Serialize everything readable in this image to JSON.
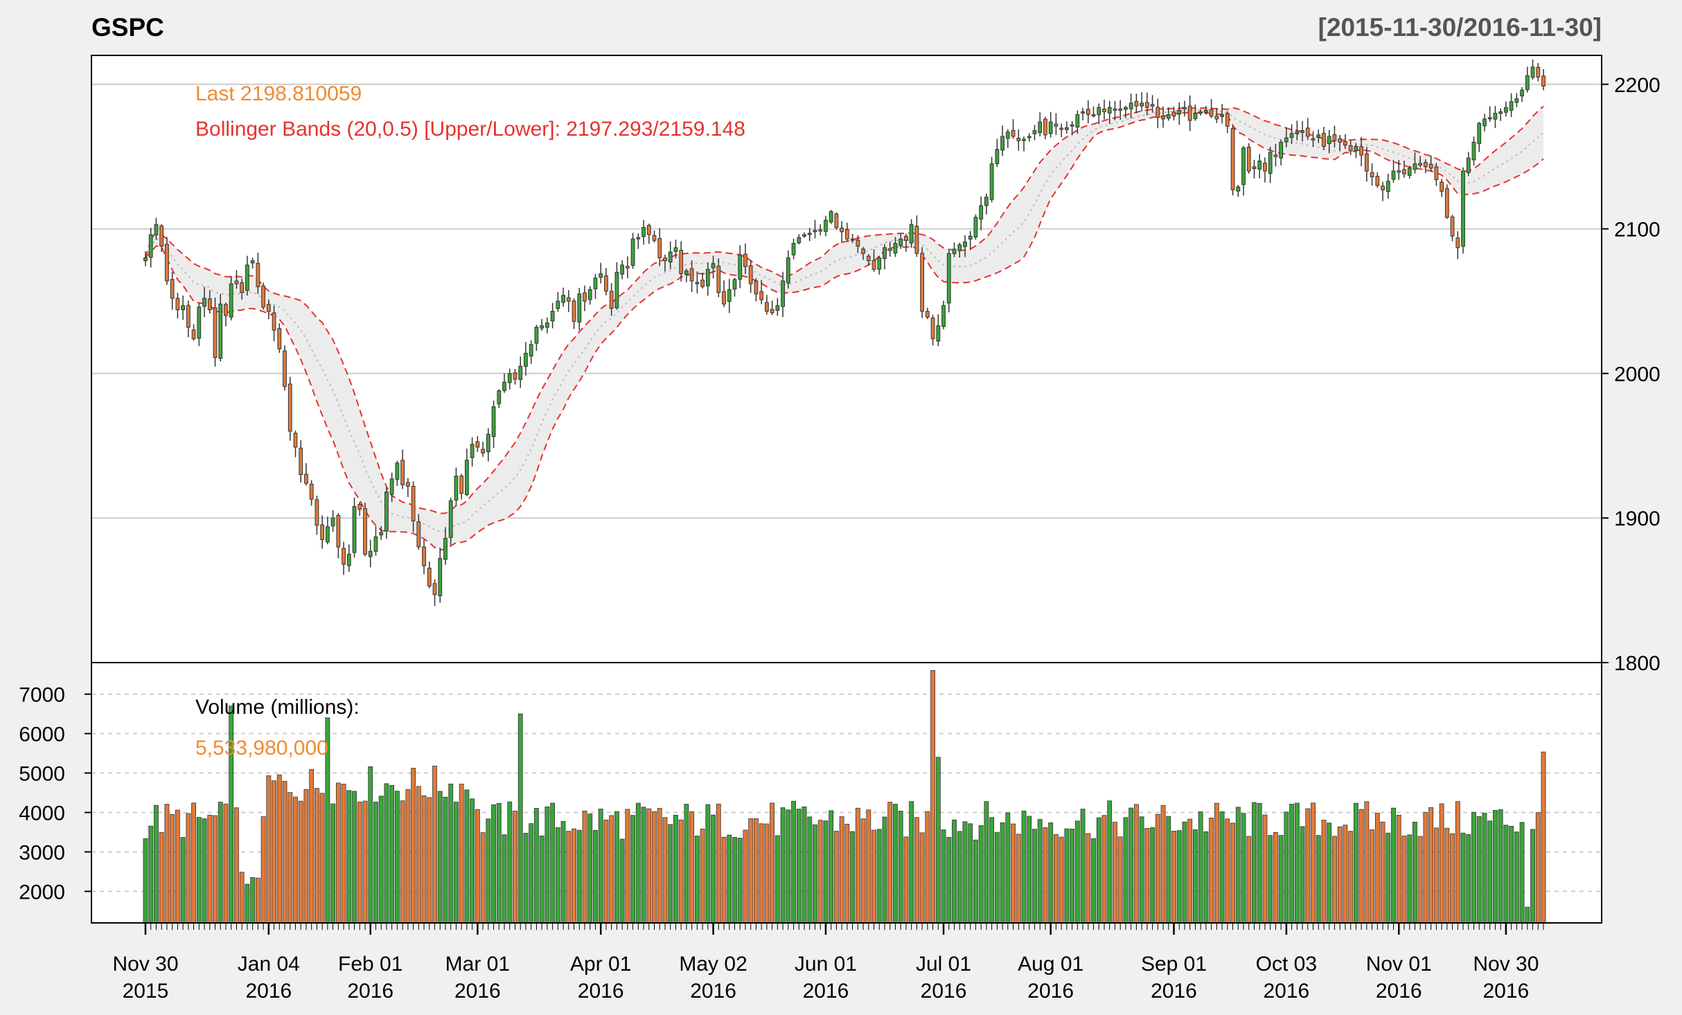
{
  "header": {
    "title": "GSPC",
    "date_range": "[2015-11-30/2016-11-30]"
  },
  "colors": {
    "up": "#3aa53a",
    "down": "#e07a3a",
    "band": "#e6322e",
    "last": "#f08a30",
    "grid": "#cccccc"
  },
  "legend": {
    "last_label": "Last 2198.810059",
    "bbands_label": "Bollinger Bands (20,0.5) [Upper/Lower]: 2197.293/2159.148",
    "volume_label": "Volume (millions):",
    "volume_value": "5,533,980,000"
  },
  "chart_data": [
    {
      "type": "candlestick",
      "name": "price",
      "ylim": [
        1800,
        2220
      ],
      "yticks": [
        "1800",
        "1900",
        "2000",
        "2100",
        "2200"
      ],
      "closes": [
        2080,
        2096,
        2103,
        2088,
        2064,
        2052,
        2044,
        2047,
        2032,
        2024,
        2046,
        2052,
        2044,
        2011,
        2048,
        2040,
        2062,
        2062,
        2056,
        2075,
        2078,
        2060,
        2046,
        2043,
        2030,
        2017,
        1991,
        1960,
        1949,
        1930,
        1924,
        1913,
        1895,
        1885,
        1894,
        1900,
        1880,
        1868,
        1875,
        1908,
        1906,
        1875,
        1877,
        1887,
        1890,
        1918,
        1927,
        1938,
        1923,
        1922,
        1898,
        1880,
        1867,
        1853,
        1847,
        1872,
        1886,
        1912,
        1929,
        1917,
        1940,
        1951,
        1949,
        1945,
        1958,
        1977,
        1988,
        1994,
        2000,
        1996,
        2005,
        2014,
        2020,
        2032,
        2033,
        2035,
        2043,
        2050,
        2054,
        2050,
        2036,
        2055,
        2050,
        2058,
        2066,
        2069,
        2057,
        2045,
        2070,
        2075,
        2073,
        2093,
        2094,
        2101,
        2096,
        2092,
        2080,
        2078,
        2084,
        2087,
        2069,
        2071,
        2064,
        2063,
        2060,
        2072,
        2076,
        2056,
        2048,
        2058,
        2065,
        2082,
        2074,
        2062,
        2055,
        2051,
        2043,
        2042,
        2047,
        2064,
        2080,
        2090,
        2094,
        2096,
        2097,
        2099,
        2099,
        2106,
        2112,
        2101,
        2098,
        2093,
        2093,
        2088,
        2083,
        2078,
        2072,
        2080,
        2087,
        2085,
        2090,
        2093,
        2092,
        2103,
        2083,
        2043,
        2039,
        2024,
        2033,
        2047,
        2083,
        2086,
        2089,
        2091,
        2095,
        2108,
        2116,
        2122,
        2145,
        2155,
        2164,
        2167,
        2164,
        2161,
        2162,
        2164,
        2168,
        2174,
        2165,
        2174,
        2171,
        2169,
        2170,
        2172,
        2179,
        2181,
        2179,
        2179,
        2184,
        2181,
        2184,
        2182,
        2182,
        2184,
        2187,
        2185,
        2187,
        2184,
        2186,
        2177,
        2176,
        2179,
        2178,
        2182,
        2184,
        2175,
        2180,
        2181,
        2182,
        2178,
        2176,
        2179,
        2171,
        2127,
        2129,
        2156,
        2140,
        2143,
        2147,
        2140,
        2153,
        2150,
        2160,
        2163,
        2166,
        2167,
        2168,
        2164,
        2162,
        2165,
        2157,
        2164,
        2161,
        2160,
        2158,
        2154,
        2157,
        2151,
        2140,
        2136,
        2130,
        2127,
        2133,
        2140,
        2140,
        2138,
        2142,
        2145,
        2144,
        2143,
        2142,
        2134,
        2126,
        2108,
        2095,
        2087,
        2140,
        2149,
        2160,
        2173,
        2176,
        2177,
        2180,
        2181,
        2184,
        2188,
        2190,
        2196,
        2206,
        2212,
        2205,
        2198.8
      ],
      "last": 2198.810059,
      "bbands_n": 20,
      "bbands_sd": 0.5,
      "bbands_upper_last": 2197.293,
      "bbands_lower_last": 2159.148
    },
    {
      "type": "bar",
      "name": "volume",
      "unit": "millions",
      "ylim": [
        1200,
        7800
      ],
      "yticks": [
        "2000",
        "3000",
        "4000",
        "5000",
        "6000",
        "7000"
      ],
      "last_value": 5533.98
    }
  ],
  "xaxis": {
    "labels": [
      {
        "date": "Nov 30",
        "year": "2015",
        "index": 0
      },
      {
        "date": "Jan 04",
        "year": "2016",
        "index": 23
      },
      {
        "date": "Feb 01",
        "year": "2016",
        "index": 42
      },
      {
        "date": "Mar 01",
        "year": "2016",
        "index": 62
      },
      {
        "date": "Apr 01",
        "year": "2016",
        "index": 85
      },
      {
        "date": "May 02",
        "year": "2016",
        "index": 106
      },
      {
        "date": "Jun 01",
        "year": "2016",
        "index": 127
      },
      {
        "date": "Jul 01",
        "year": "2016",
        "index": 149
      },
      {
        "date": "Aug 01",
        "year": "2016",
        "index": 169
      },
      {
        "date": "Sep 01",
        "year": "2016",
        "index": 192
      },
      {
        "date": "Oct 03",
        "year": "2016",
        "index": 213
      },
      {
        "date": "Nov 01",
        "year": "2016",
        "index": 234
      },
      {
        "date": "Nov 30",
        "year": "2016",
        "index": 254
      }
    ]
  }
}
